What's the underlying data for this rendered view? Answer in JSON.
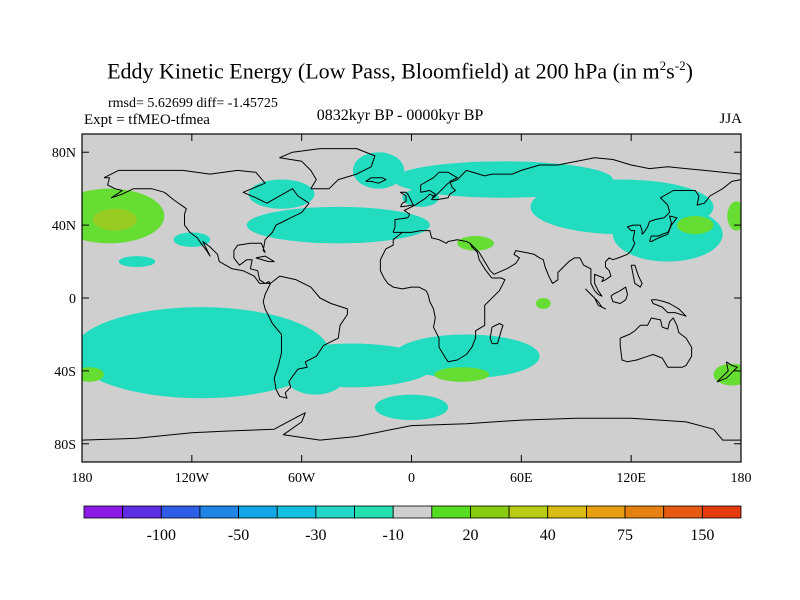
{
  "header": {
    "title_prefix": "Eddy Kinetic Energy (Low Pass, Bloomfield) at 200 hPa (in m",
    "title_sup1": "2",
    "title_mid": "s",
    "title_sup2": "-2",
    "title_suffix": ")",
    "stats": "rmsd= 5.62699 diff= -1.45725",
    "expt": "Expt = tfMEO-tfmea",
    "period": "0832kyr BP - 0000kyr BP",
    "season": "JJA"
  },
  "colors": {
    "background": "#cfcfcf",
    "coast": "#000000",
    "neg_light": "#22dcc0",
    "pos_light": "#66dd33",
    "pos_mid": "#99cc22"
  },
  "chart_data": {
    "type": "heatmap",
    "title": "Eddy Kinetic Energy (Low Pass, Bloomfield) at 200 hPa (in m2s-2)",
    "projection": "cylindrical equidistant",
    "xlim": [
      -180,
      180
    ],
    "ylim": [
      -90,
      90
    ],
    "x_ticks": [
      {
        "value": -180,
        "label": "180"
      },
      {
        "value": -120,
        "label": "120W"
      },
      {
        "value": -60,
        "label": "60W"
      },
      {
        "value": 0,
        "label": "0"
      },
      {
        "value": 60,
        "label": "60E"
      },
      {
        "value": 120,
        "label": "120E"
      },
      {
        "value": 180,
        "label": "180"
      }
    ],
    "y_ticks": [
      {
        "value": 80,
        "label": "80N"
      },
      {
        "value": 40,
        "label": "40N"
      },
      {
        "value": 0,
        "label": "0"
      },
      {
        "value": -40,
        "label": "40S"
      },
      {
        "value": -80,
        "label": "80S"
      }
    ],
    "colorbar": {
      "labels": [
        "-100",
        "-50",
        "-30",
        "-10",
        "20",
        "40",
        "75",
        "150"
      ],
      "colors": [
        "#8a1ae8",
        "#5d2ee6",
        "#2f5ee6",
        "#1f86e6",
        "#12a6e6",
        "#12c0e0",
        "#22d6c8",
        "#22e0b0",
        "#cfcfcf",
        "#55dd22",
        "#88cc11",
        "#b8cc11",
        "#d8bc11",
        "#e6a011",
        "#e68011",
        "#e65a11",
        "#e63a11"
      ]
    },
    "regions": [
      {
        "class": "pos_light",
        "lon": -180,
        "lat": 45,
        "dlon": 30,
        "dlat": 15
      },
      {
        "class": "pos_mid",
        "lon": -168,
        "lat": 43,
        "dlon": 12,
        "dlat": 6
      },
      {
        "class": "neg_light",
        "lon": -155,
        "lat": 20,
        "dlon": 10,
        "dlat": 3
      },
      {
        "class": "neg_light",
        "lon": -125,
        "lat": 32,
        "dlon": 10,
        "dlat": 4
      },
      {
        "class": "neg_light",
        "lon": -80,
        "lat": 57,
        "dlon": 18,
        "dlat": 8
      },
      {
        "class": "neg_light",
        "lon": -25,
        "lat": 70,
        "dlon": 14,
        "dlat": 10
      },
      {
        "class": "neg_light",
        "lon": -65,
        "lat": 40,
        "dlon": 50,
        "dlat": 10
      },
      {
        "class": "neg_light",
        "lon": 20,
        "lat": 65,
        "dlon": 60,
        "dlat": 10
      },
      {
        "class": "neg_light",
        "lon": 0,
        "lat": 55,
        "dlon": 10,
        "dlat": 5
      },
      {
        "class": "neg_light",
        "lon": 90,
        "lat": 50,
        "dlon": 50,
        "dlat": 15
      },
      {
        "class": "neg_light",
        "lon": 125,
        "lat": 35,
        "dlon": 30,
        "dlat": 15
      },
      {
        "class": "pos_light",
        "lon": 150,
        "lat": 40,
        "dlon": 10,
        "dlat": 5
      },
      {
        "class": "pos_light",
        "lon": 175,
        "lat": 45,
        "dlon": 5,
        "dlat": 8
      },
      {
        "class": "pos_light",
        "lon": 30,
        "lat": 30,
        "dlon": 10,
        "dlat": 4
      },
      {
        "class": "pos_light",
        "lon": 70,
        "lat": -3,
        "dlon": 4,
        "dlat": 3
      },
      {
        "class": "neg_light",
        "lon": -150,
        "lat": -30,
        "dlon": 70,
        "dlat": 25
      },
      {
        "class": "neg_light",
        "lon": -55,
        "lat": -37,
        "dlon": 45,
        "dlat": 12
      },
      {
        "class": "neg_light",
        "lon": -60,
        "lat": -45,
        "dlon": 15,
        "dlat": 8
      },
      {
        "class": "neg_light",
        "lon": 10,
        "lat": -32,
        "dlon": 40,
        "dlat": 12
      },
      {
        "class": "pos_light",
        "lon": 20,
        "lat": -42,
        "dlon": 15,
        "dlat": 4
      },
      {
        "class": "neg_light",
        "lon": -10,
        "lat": -60,
        "dlon": 20,
        "dlat": 7
      },
      {
        "class": "pos_light",
        "lon": -180,
        "lat": -42,
        "dlon": 8,
        "dlat": 4
      },
      {
        "class": "pos_light",
        "lon": 170,
        "lat": -42,
        "dlon": 10,
        "dlat": 6
      }
    ]
  }
}
